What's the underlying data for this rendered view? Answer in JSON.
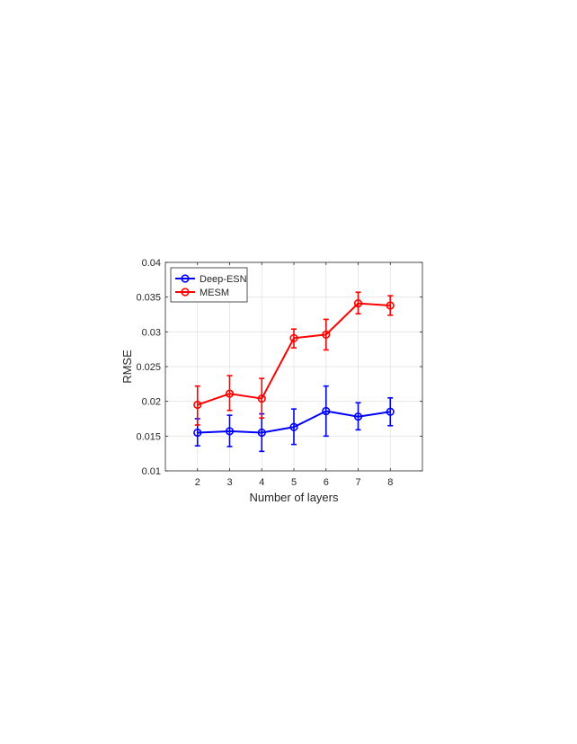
{
  "chart_data": {
    "type": "line",
    "xlabel": "Number of layers",
    "ylabel": "RMSE",
    "x": [
      2,
      3,
      4,
      5,
      6,
      7,
      8
    ],
    "xlim": [
      1,
      9
    ],
    "ylim": [
      0.01,
      0.04
    ],
    "xticks": [
      "2",
      "3",
      "4",
      "5",
      "6",
      "7",
      "8"
    ],
    "yticks": [
      "0.01",
      "0.015",
      "0.02",
      "0.025",
      "0.03",
      "0.035",
      "0.04"
    ],
    "grid": true,
    "legend_position": "top-left",
    "series": [
      {
        "name": "Deep-ESN",
        "color": "#0000ff",
        "marker": "circle",
        "values": [
          0.0155,
          0.0157,
          0.0155,
          0.0163,
          0.0186,
          0.0178,
          0.0185
        ],
        "err_low": [
          0.0136,
          0.0135,
          0.0128,
          0.0138,
          0.015,
          0.0159,
          0.0165
        ],
        "err_high": [
          0.0175,
          0.018,
          0.0182,
          0.0189,
          0.0222,
          0.0198,
          0.0205
        ]
      },
      {
        "name": "MESM",
        "color": "#ff0000",
        "marker": "circle",
        "values": [
          0.0195,
          0.0211,
          0.0204,
          0.0291,
          0.0296,
          0.0341,
          0.0338
        ],
        "err_low": [
          0.0166,
          0.0187,
          0.0176,
          0.0277,
          0.0274,
          0.0326,
          0.0324
        ],
        "err_high": [
          0.0222,
          0.0237,
          0.0233,
          0.0304,
          0.0318,
          0.0357,
          0.0352
        ]
      }
    ]
  }
}
